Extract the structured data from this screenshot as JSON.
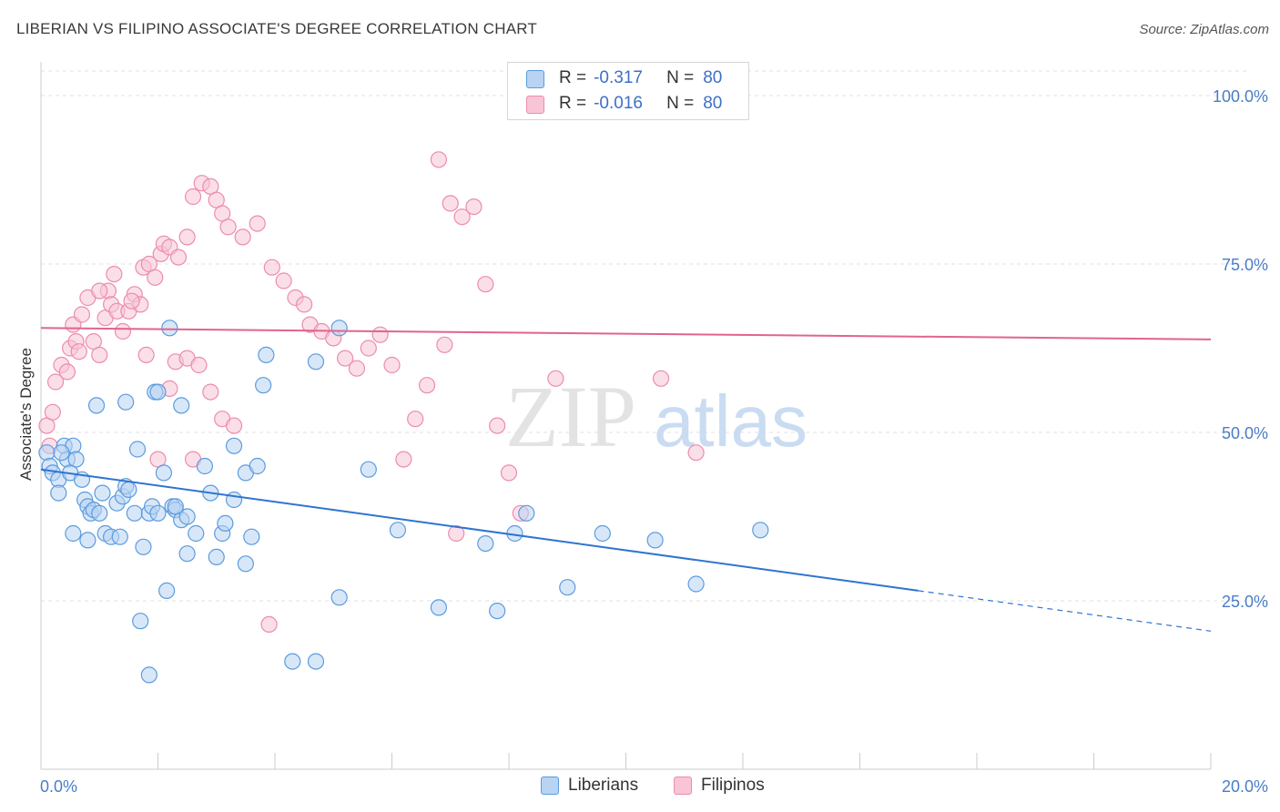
{
  "title": "LIBERIAN VS FILIPINO ASSOCIATE'S DEGREE CORRELATION CHART",
  "source": "Source: ZipAtlas.com",
  "watermark": {
    "zip": "ZIP",
    "atlas": "atlas"
  },
  "colors": {
    "blue": "#5b9be0",
    "blue_fill": "#b8d3f3",
    "blue_line": "#2f74d0",
    "pink": "#ec8cad",
    "pink_fill": "#f8c4d6",
    "pink_line": "#e0648f",
    "tick_text": "#4a7cc9",
    "grid": "#e2e2e2"
  },
  "legend": {
    "rows": [
      {
        "series": "Liberians",
        "r_label": "R =",
        "r": "-0.317",
        "n_label": "N =",
        "n": "80"
      },
      {
        "series": "Filipinos",
        "r_label": "R =",
        "r": "-0.016",
        "n_label": "N =",
        "n": "80"
      }
    ]
  },
  "bottom_legend": {
    "liberians": "Liberians",
    "filipinos": "Filipinos"
  },
  "chart_data": {
    "type": "scatter",
    "title": "LIBERIAN VS FILIPINO ASSOCIATE'S DEGREE CORRELATION CHART",
    "xlabel": "",
    "ylabel": "Associate's Degree",
    "xlim": [
      0,
      20
    ],
    "ylim": [
      0,
      105
    ],
    "x_tick_labels": [
      "0.0%",
      "20.0%"
    ],
    "y_ticks": [
      25,
      50,
      75,
      100
    ],
    "y_tick_labels": [
      "25.0%",
      "50.0%",
      "75.0%",
      "100.0%"
    ],
    "grid": true,
    "series": [
      {
        "name": "Liberians",
        "r": -0.317,
        "n": 80,
        "trend": {
          "x0": 0,
          "y0": 44.5,
          "x1": 15.0,
          "y1": 26.5,
          "dash_to_x": 20.0,
          "dash_to_y": 20.5
        },
        "points": [
          [
            0.1,
            47
          ],
          [
            0.15,
            45
          ],
          [
            0.2,
            44
          ],
          [
            0.3,
            43
          ],
          [
            0.3,
            41
          ],
          [
            0.4,
            48
          ],
          [
            0.45,
            46
          ],
          [
            0.5,
            44
          ],
          [
            0.55,
            48
          ],
          [
            0.6,
            46
          ],
          [
            0.7,
            43
          ],
          [
            0.75,
            40
          ],
          [
            0.8,
            39
          ],
          [
            0.85,
            38
          ],
          [
            0.9,
            38.5
          ],
          [
            1.0,
            38
          ],
          [
            1.05,
            41
          ],
          [
            1.1,
            35
          ],
          [
            1.2,
            34.5
          ],
          [
            1.3,
            39.5
          ],
          [
            1.4,
            40.5
          ],
          [
            1.45,
            42
          ],
          [
            1.5,
            41.5
          ],
          [
            1.6,
            38
          ],
          [
            1.75,
            33
          ],
          [
            1.85,
            38
          ],
          [
            1.9,
            39
          ],
          [
            2.0,
            38
          ],
          [
            2.15,
            26.5
          ],
          [
            2.25,
            39
          ],
          [
            2.3,
            38.5
          ],
          [
            2.4,
            37
          ],
          [
            2.5,
            37.5
          ],
          [
            2.65,
            35
          ],
          [
            2.8,
            45
          ],
          [
            2.9,
            41
          ],
          [
            3.0,
            31.5
          ],
          [
            3.1,
            35
          ],
          [
            3.15,
            36.5
          ],
          [
            3.3,
            40
          ],
          [
            3.6,
            34.5
          ],
          [
            3.3,
            48
          ],
          [
            3.5,
            44
          ],
          [
            3.7,
            45
          ],
          [
            0.55,
            35
          ],
          [
            0.8,
            34
          ],
          [
            1.35,
            34.5
          ],
          [
            2.1,
            44
          ],
          [
            2.3,
            39
          ],
          [
            1.65,
            47.5
          ],
          [
            0.35,
            47
          ],
          [
            0.95,
            54
          ],
          [
            1.45,
            54.5
          ],
          [
            1.95,
            56
          ],
          [
            2.0,
            56
          ],
          [
            2.4,
            54
          ],
          [
            3.8,
            57
          ],
          [
            3.85,
            61.5
          ],
          [
            4.7,
            60.5
          ],
          [
            5.1,
            65.5
          ],
          [
            2.2,
            65.5
          ],
          [
            5.6,
            44.5
          ],
          [
            6.1,
            35.5
          ],
          [
            6.8,
            24
          ],
          [
            7.6,
            33.5
          ],
          [
            7.8,
            23.5
          ],
          [
            8.1,
            35
          ],
          [
            8.3,
            38
          ],
          [
            9.0,
            27
          ],
          [
            9.6,
            35
          ],
          [
            10.5,
            34
          ],
          [
            11.2,
            27.5
          ],
          [
            12.3,
            35.5
          ],
          [
            4.3,
            16
          ],
          [
            4.7,
            16
          ],
          [
            5.1,
            25.5
          ],
          [
            1.7,
            22
          ],
          [
            1.85,
            14
          ],
          [
            3.5,
            30.5
          ],
          [
            2.5,
            32
          ]
        ]
      },
      {
        "name": "Filipinos",
        "r": -0.016,
        "n": 80,
        "trend": {
          "x0": 0,
          "y0": 65.5,
          "x1": 20.0,
          "y1": 63.8
        },
        "points": [
          [
            0.1,
            51
          ],
          [
            0.15,
            48
          ],
          [
            0.2,
            53
          ],
          [
            0.25,
            57.5
          ],
          [
            0.35,
            60
          ],
          [
            0.5,
            62.5
          ],
          [
            0.55,
            66
          ],
          [
            0.6,
            63.5
          ],
          [
            0.7,
            67.5
          ],
          [
            0.8,
            70
          ],
          [
            0.9,
            63.5
          ],
          [
            1.0,
            61.5
          ],
          [
            1.1,
            67
          ],
          [
            1.15,
            71
          ],
          [
            1.2,
            69
          ],
          [
            1.3,
            68
          ],
          [
            1.4,
            65
          ],
          [
            1.5,
            68
          ],
          [
            1.6,
            70.5
          ],
          [
            1.7,
            69
          ],
          [
            1.75,
            74.5
          ],
          [
            1.85,
            75
          ],
          [
            1.95,
            73
          ],
          [
            2.05,
            76.5
          ],
          [
            2.1,
            78
          ],
          [
            2.2,
            77.5
          ],
          [
            2.35,
            76
          ],
          [
            2.5,
            79
          ],
          [
            2.6,
            85
          ],
          [
            2.75,
            87
          ],
          [
            2.9,
            86.5
          ],
          [
            3.0,
            84.5
          ],
          [
            3.1,
            82.5
          ],
          [
            3.2,
            80.5
          ],
          [
            3.45,
            79
          ],
          [
            3.7,
            81
          ],
          [
            3.95,
            74.5
          ],
          [
            4.15,
            72.5
          ],
          [
            4.35,
            70
          ],
          [
            4.5,
            69
          ],
          [
            4.6,
            66
          ],
          [
            4.8,
            65
          ],
          [
            5.0,
            64
          ],
          [
            5.2,
            61
          ],
          [
            5.4,
            59.5
          ],
          [
            5.6,
            62.5
          ],
          [
            5.8,
            64.5
          ],
          [
            6.0,
            60
          ],
          [
            6.2,
            46
          ],
          [
            6.4,
            52
          ],
          [
            6.6,
            57
          ],
          [
            6.8,
            90.5
          ],
          [
            7.0,
            84
          ],
          [
            7.2,
            82
          ],
          [
            7.4,
            83.5
          ],
          [
            7.6,
            72
          ],
          [
            8.2,
            38
          ],
          [
            8.8,
            58
          ],
          [
            10.6,
            58
          ],
          [
            11.2,
            47
          ],
          [
            1.8,
            61.5
          ],
          [
            2.3,
            60.5
          ],
          [
            2.5,
            61
          ],
          [
            2.7,
            60
          ],
          [
            2.9,
            56
          ],
          [
            3.1,
            52
          ],
          [
            3.3,
            51
          ],
          [
            1.55,
            69.5
          ],
          [
            1.25,
            73.5
          ],
          [
            1.0,
            71
          ],
          [
            2.0,
            46
          ],
          [
            2.6,
            46
          ],
          [
            3.9,
            21.5
          ],
          [
            7.1,
            35
          ],
          [
            8.0,
            44
          ],
          [
            6.9,
            63
          ],
          [
            7.8,
            51
          ],
          [
            0.45,
            59
          ],
          [
            0.65,
            62
          ],
          [
            2.2,
            56.5
          ]
        ]
      }
    ]
  }
}
